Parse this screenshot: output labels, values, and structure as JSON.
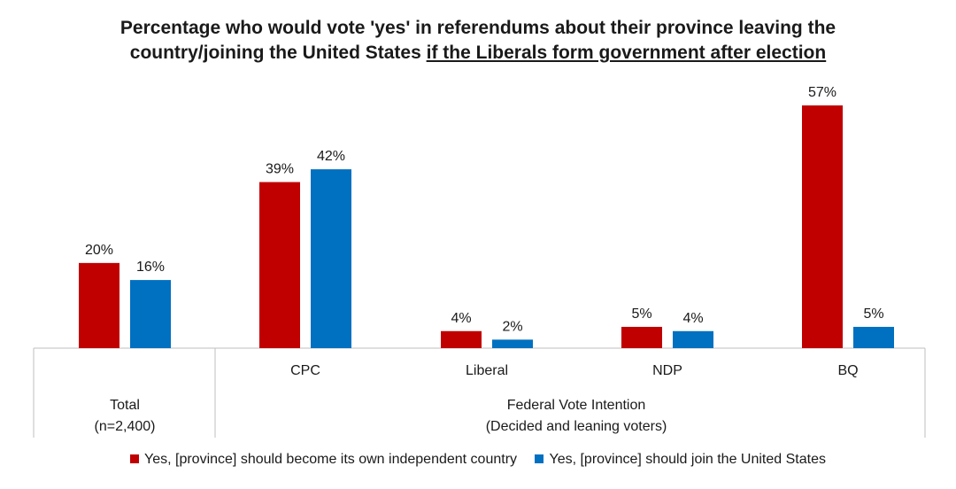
{
  "chart_data": {
    "type": "bar",
    "title_line1": "Percentage who would vote 'yes' in referendums about their province leaving the",
    "title_line2_plain": "country/joining the United States ",
    "title_line2_underlined": "if the Liberals form government after election",
    "categories": [
      "Total",
      "CPC",
      "Liberal",
      "NDP",
      "BQ"
    ],
    "group_labels": {
      "total": [
        "Total",
        "(n=2,400)"
      ],
      "federal": [
        "Federal Vote Intention",
        "(Decided and leaning voters)"
      ]
    },
    "series": [
      {
        "name": "Yes, [province] should become its own independent country",
        "color": "#c00000",
        "values": [
          20,
          39,
          4,
          5,
          57
        ],
        "labels": [
          "20%",
          "39%",
          "4%",
          "5%",
          "57%"
        ]
      },
      {
        "name": "Yes, [province] should join the United States",
        "color": "#0070c0",
        "values": [
          16,
          42,
          2,
          4,
          5
        ],
        "labels": [
          "16%",
          "42%",
          "2%",
          "4%",
          "5%"
        ]
      }
    ],
    "ylim": [
      0,
      60
    ],
    "unit": "%"
  }
}
